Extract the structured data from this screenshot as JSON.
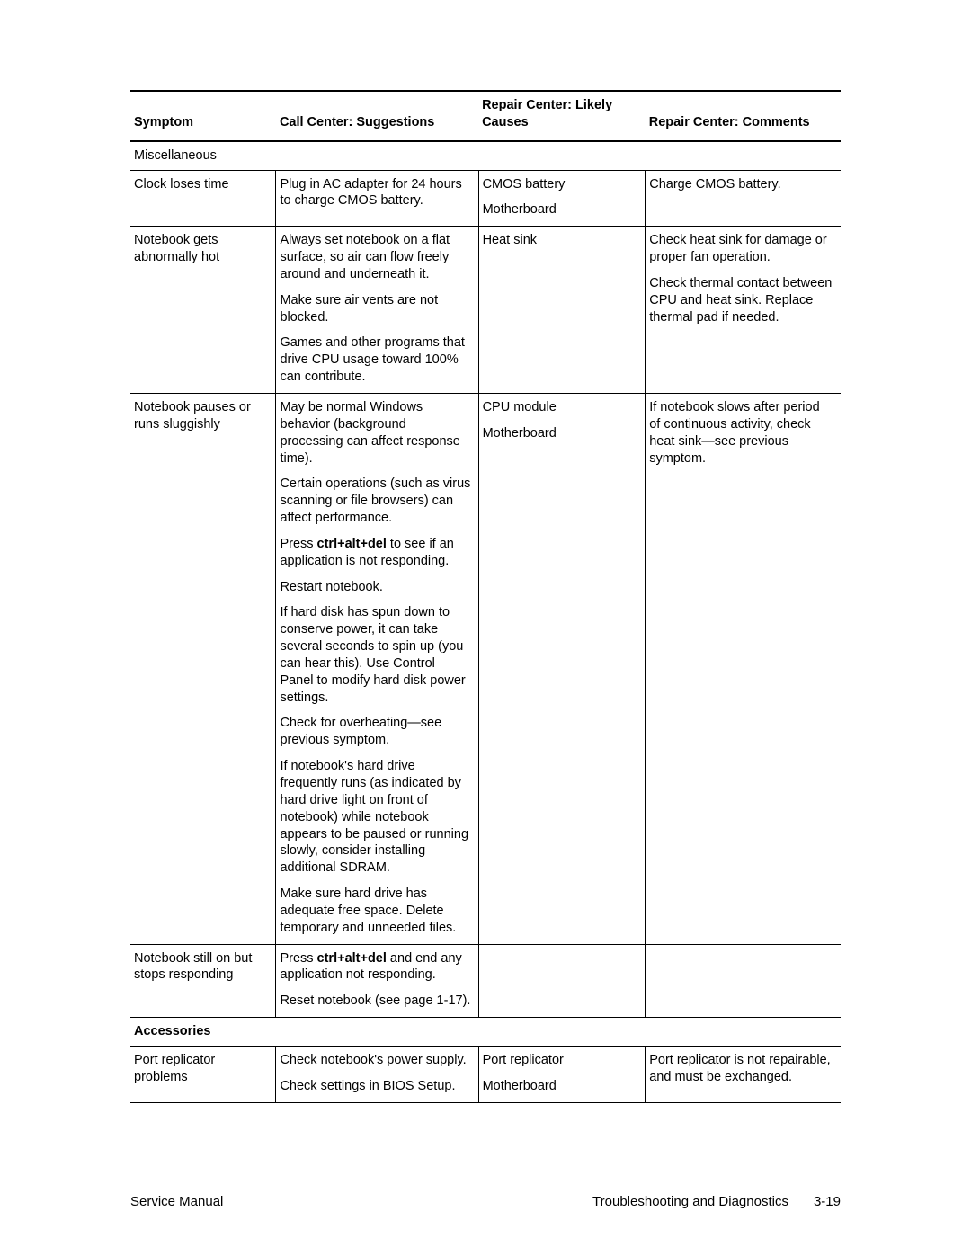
{
  "table": {
    "headers": {
      "symptom": "Symptom",
      "call": "Call Center: Suggestions",
      "causes": "Repair Center: Likely Causes",
      "comments": "Repair Center: Comments"
    },
    "sections": {
      "misc": "Miscellaneous",
      "accessories": "Accessories"
    },
    "rows": {
      "clock": {
        "symptom": "Clock loses time",
        "call": [
          "Plug in AC adapter for 24 hours to charge CMOS battery."
        ],
        "causes": [
          "CMOS battery",
          "Motherboard"
        ],
        "comments": [
          "Charge CMOS battery."
        ]
      },
      "hot": {
        "symptom": "Notebook gets abnormally hot",
        "call": [
          "Always set notebook on a flat surface, so air can flow freely around and underneath it.",
          "Make sure air vents are not blocked.",
          "Games and other programs that drive CPU usage toward 100% can contribute."
        ],
        "causes": [
          "Heat sink"
        ],
        "comments": [
          "Check heat sink for damage or proper fan operation.",
          "Check thermal contact between CPU and heat sink. Replace thermal pad if needed."
        ]
      },
      "sluggish": {
        "symptom": "Notebook pauses or runs sluggishly",
        "call_parts": {
          "p1": "May be normal Windows behavior (background processing can affect response time).",
          "p2": "Certain operations (such as virus scanning or file browsers) can affect performance.",
          "p3_pre": "Press ",
          "p3_key": "ctrl+alt+del",
          "p3_post": " to see if an application is not responding.",
          "p4": "Restart notebook.",
          "p5": "If hard disk has spun down to conserve power, it can take several seconds to spin up (you can hear this). Use Control Panel to modify hard disk power settings.",
          "p6": "Check for overheating—see previous symptom.",
          "p7": "If notebook's hard drive frequently runs (as indicated by hard drive light on front of notebook) while notebook appears to be paused or running slowly, consider installing additional SDRAM.",
          "p8": "Make sure hard drive has adequate free space. Delete temporary and unneeded files."
        },
        "causes": [
          "CPU module",
          "Motherboard"
        ],
        "comments": [
          "If notebook slows after period of continuous activity, check heat sink—see previous symptom."
        ]
      },
      "freeze": {
        "symptom": "Notebook still on but stops responding",
        "call_parts": {
          "p1_pre": "Press ",
          "p1_key": "ctrl+alt+del",
          "p1_post": " and end any application not responding.",
          "p2": "Reset notebook (see page 1-17)."
        }
      },
      "port": {
        "symptom": "Port replicator problems",
        "call": [
          "Check notebook's power supply.",
          "Check settings in BIOS Setup."
        ],
        "causes": [
          "Port replicator",
          "Motherboard"
        ],
        "comments": [
          "Port replicator is not repairable, and must be exchanged."
        ]
      }
    }
  },
  "footer": {
    "left": "Service Manual",
    "center": "Troubleshooting and Diagnostics",
    "page": "3-19"
  }
}
